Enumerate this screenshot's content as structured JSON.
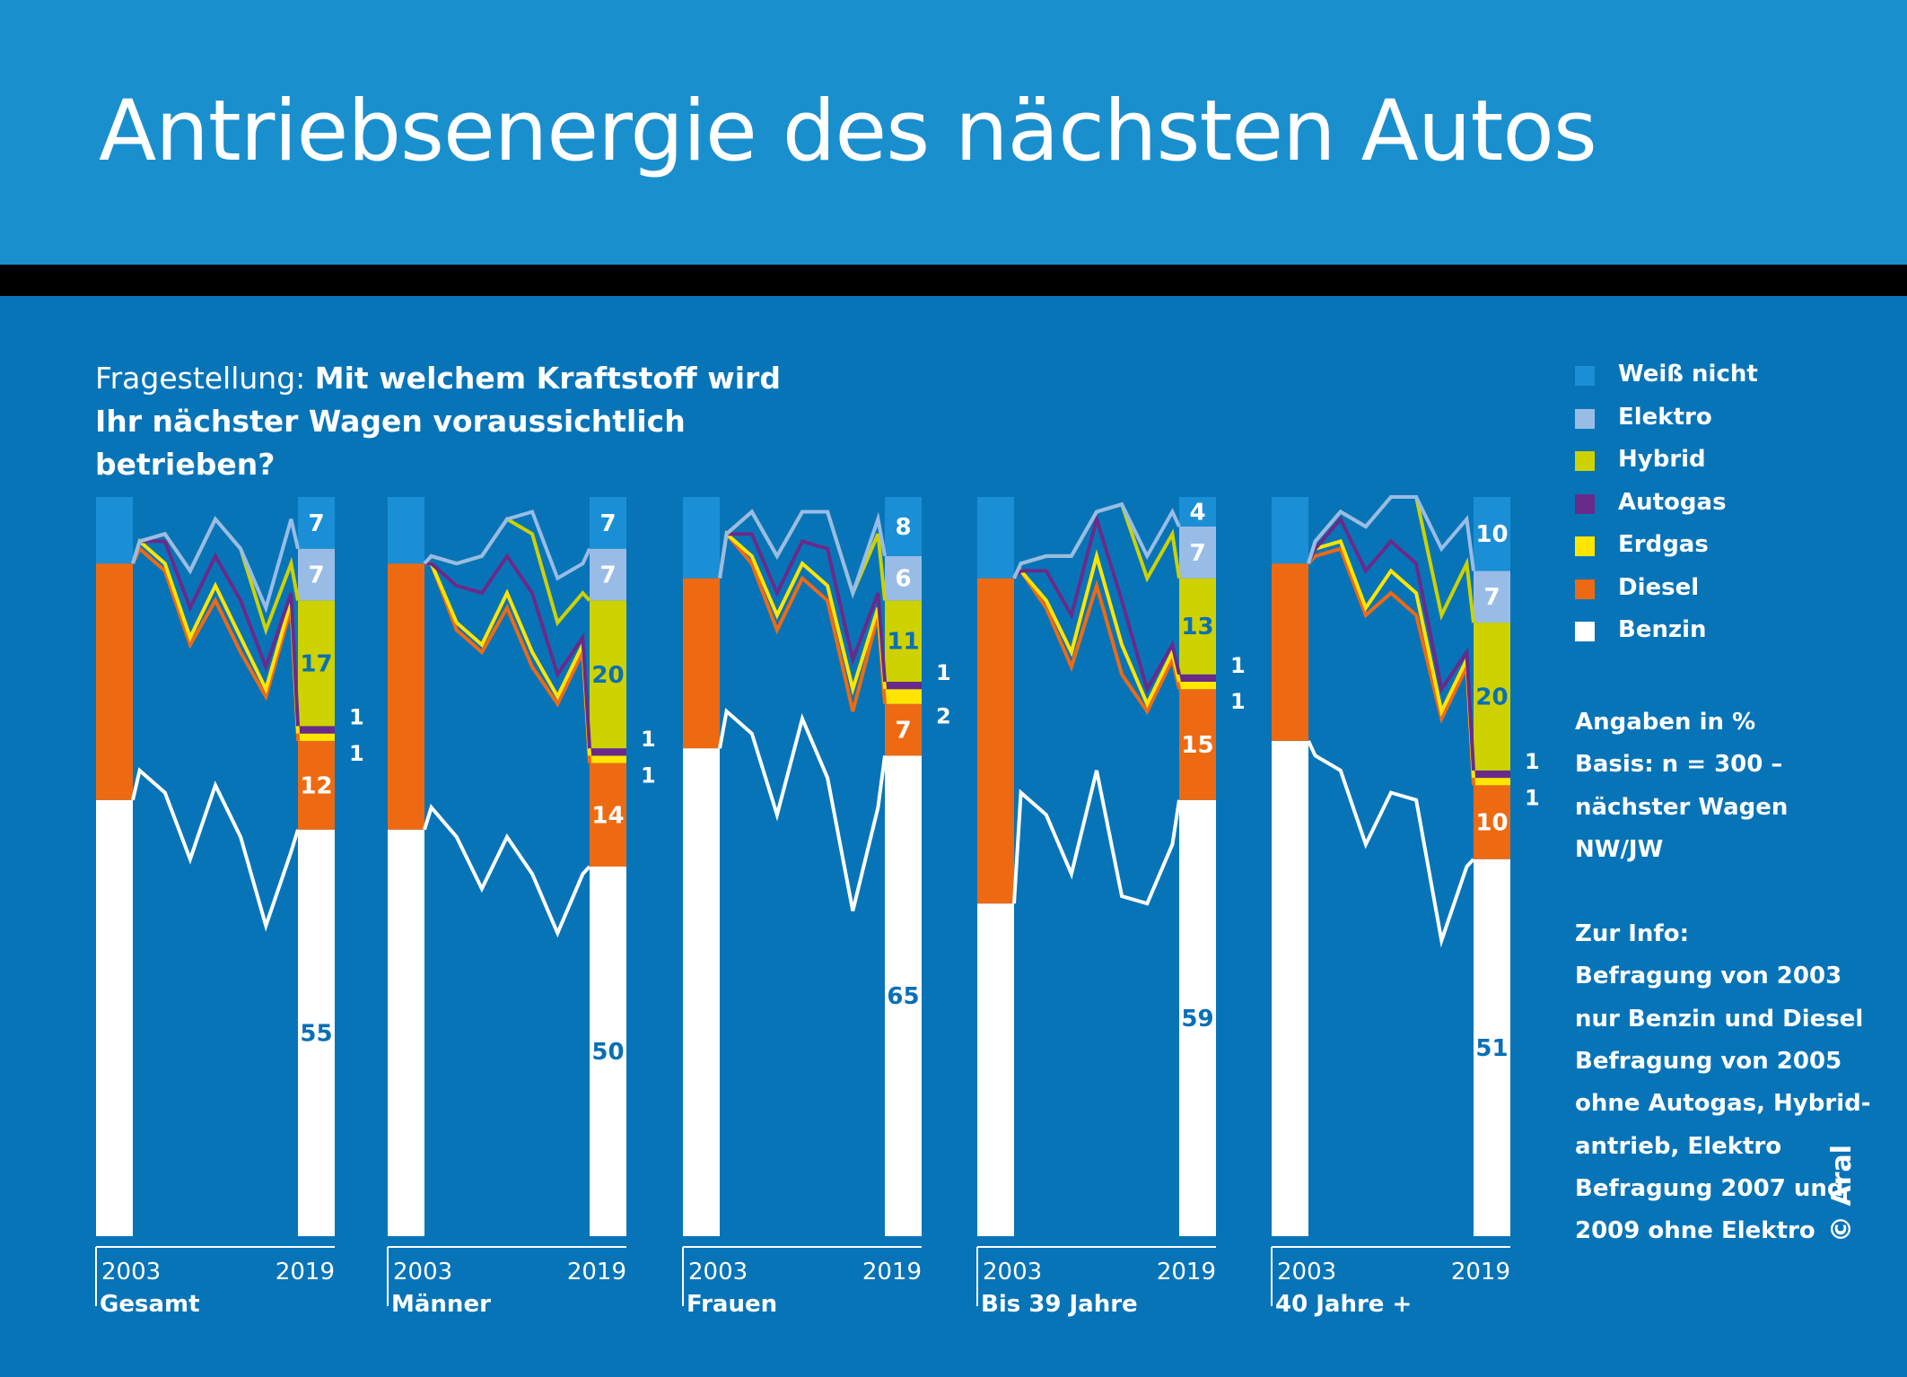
{
  "title": "Antriebsenergie des nächsten Autos",
  "question": {
    "prefix": "Fragestellung: ",
    "text": "Mit welchem Kraftstoff wird Ihr nächster Wagen voraussichtlich betrieben?"
  },
  "legend": [
    {
      "label": "Weiß nicht",
      "color": "#1a8fd6"
    },
    {
      "label": "Elektro",
      "color": "#99bce6"
    },
    {
      "label": "Hybrid",
      "color": "#cdd200"
    },
    {
      "label": "Autogas",
      "color": "#6a2a8a"
    },
    {
      "label": "Erdgas",
      "color": "#ffe500"
    },
    {
      "label": "Diesel",
      "color": "#ee6a12"
    },
    {
      "label": "Benzin",
      "color": "#ffffff"
    }
  ],
  "notes": {
    "angaben": "Angaben in %",
    "basis": [
      "Basis: n = 300 –",
      "nächster Wagen",
      "NW/JW"
    ],
    "info_title": "Zur Info:",
    "info_lines": [
      "Befragung von 2003",
      "nur Benzin und Diesel",
      "Befragung von 2005",
      "ohne Autogas, Hybrid-",
      "antrieb, Elektro",
      "Befragung 2007 und",
      "2009 ohne Elektro"
    ]
  },
  "copyright": "© Aral",
  "chart_data": {
    "type": "area",
    "series_order": [
      "Benzin",
      "Diesel",
      "Erdgas",
      "Autogas",
      "Hybrid",
      "Elektro",
      "Weiß nicht"
    ],
    "x": [
      "2003",
      "",
      "",
      "",
      "",
      "",
      "",
      "",
      "2019"
    ],
    "xaxis_labels": {
      "start": "2003",
      "end": "2019"
    },
    "ylim": [
      0,
      100
    ],
    "panels": [
      {
        "name": "Gesamt",
        "Benzin": [
          59,
          63,
          60,
          51,
          61,
          54,
          42,
          52,
          55
        ],
        "Diesel": [
          32,
          30,
          30,
          29,
          25,
          25,
          31,
          33,
          12
        ],
        "Erdgas": [
          0,
          1,
          1,
          1,
          2,
          2,
          1,
          1,
          1
        ],
        "Autogas": [
          0,
          0,
          3,
          4,
          4,
          5,
          3,
          1,
          1
        ],
        "Hybrid": [
          0,
          0,
          1,
          5,
          5,
          7,
          5,
          4,
          17
        ],
        "Elektro": [
          0,
          0,
          0,
          0,
          0,
          0,
          3,
          6,
          7
        ],
        "Weiß nicht": [
          9,
          6,
          5,
          10,
          3,
          7,
          15,
          3,
          7
        ]
      },
      {
        "name": "Männer",
        "Benzin": [
          55,
          58,
          54,
          47,
          54,
          49,
          41,
          49,
          50
        ],
        "Diesel": [
          36,
          33,
          28,
          32,
          31,
          28,
          31,
          30,
          14
        ],
        "Erdgas": [
          0,
          0,
          1,
          1,
          2,
          2,
          1,
          1,
          1
        ],
        "Autogas": [
          0,
          0,
          5,
          7,
          5,
          8,
          3,
          1,
          1
        ],
        "Hybrid": [
          0,
          1,
          3,
          5,
          5,
          8,
          7,
          6,
          20
        ],
        "Elektro": [
          0,
          0,
          0,
          0,
          0,
          3,
          6,
          4,
          7
        ],
        "Weiß nicht": [
          9,
          8,
          9,
          8,
          3,
          2,
          11,
          9,
          7
        ]
      },
      {
        "name": "Frauen",
        "Benzin": [
          66,
          71,
          68,
          57,
          70,
          62,
          44,
          58,
          65
        ],
        "Diesel": [
          23,
          24,
          23,
          25,
          19,
          24,
          27,
          26,
          7
        ],
        "Erdgas": [
          0,
          0,
          1,
          2,
          2,
          2,
          3,
          1,
          2
        ],
        "Autogas": [
          0,
          0,
          3,
          3,
          3,
          5,
          4,
          2,
          1
        ],
        "Hybrid": [
          0,
          0,
          3,
          5,
          4,
          5,
          9,
          8,
          11
        ],
        "Elektro": [
          0,
          0,
          0,
          0,
          0,
          0,
          0,
          2,
          6
        ],
        "Weiß nicht": [
          11,
          5,
          2,
          8,
          2,
          2,
          13,
          3,
          8
        ]
      },
      {
        "name": "Bis 39 Jahre",
        "Benzin": [
          45,
          60,
          57,
          49,
          63,
          46,
          45,
          53,
          59
        ],
        "Diesel": [
          44,
          30,
          28,
          28,
          25,
          30,
          26,
          25,
          15
        ],
        "Erdgas": [
          0,
          0,
          1,
          2,
          4,
          4,
          1,
          1,
          1
        ],
        "Autogas": [
          0,
          0,
          4,
          5,
          5,
          6,
          2,
          1,
          1
        ],
        "Hybrid": [
          0,
          1,
          2,
          8,
          1,
          13,
          15,
          15,
          13
        ],
        "Elektro": [
          0,
          0,
          0,
          0,
          0,
          0,
          3,
          3,
          7
        ],
        "Weiß nicht": [
          11,
          9,
          8,
          8,
          2,
          1,
          8,
          2,
          4
        ]
      },
      {
        "name": "40 Jahre +",
        "Benzin": [
          67,
          65,
          63,
          53,
          60,
          59,
          40,
          50,
          51
        ],
        "Diesel": [
          24,
          27,
          30,
          31,
          27,
          25,
          30,
          27,
          10
        ],
        "Erdgas": [
          0,
          1,
          1,
          1,
          3,
          3,
          1,
          1,
          1
        ],
        "Autogas": [
          0,
          0,
          3,
          5,
          4,
          4,
          3,
          1,
          1
        ],
        "Hybrid": [
          0,
          1,
          1,
          6,
          6,
          9,
          10,
          12,
          20
        ],
        "Elektro": [
          0,
          0,
          0,
          0,
          0,
          0,
          9,
          6,
          7
        ],
        "Weiß nicht": [
          9,
          6,
          2,
          4,
          0,
          0,
          7,
          3,
          10
        ]
      }
    ],
    "end_labels": [
      {
        "Benzin": "55",
        "Diesel": "12",
        "Erdgas": "1",
        "Autogas": "1",
        "Hybrid": "17",
        "Elektro": "7",
        "Weiß nicht": "7"
      },
      {
        "Benzin": "50",
        "Diesel": "14",
        "Erdgas": "1",
        "Autogas": "1",
        "Hybrid": "20",
        "Elektro": "7",
        "Weiß nicht": "7"
      },
      {
        "Benzin": "65",
        "Diesel": "7",
        "Erdgas": "2",
        "Autogas": "1",
        "Hybrid": "11",
        "Elektro": "6",
        "Weiß nicht": "8"
      },
      {
        "Benzin": "59",
        "Diesel": "15",
        "Erdgas": "1",
        "Autogas": "1",
        "Hybrid": "13",
        "Elektro": "7",
        "Weiß nicht": "4"
      },
      {
        "Benzin": "51",
        "Diesel": "10",
        "Erdgas": "1",
        "Autogas": "1",
        "Hybrid": "20",
        "Elektro": "7",
        "Weiß nicht": "10"
      }
    ]
  }
}
